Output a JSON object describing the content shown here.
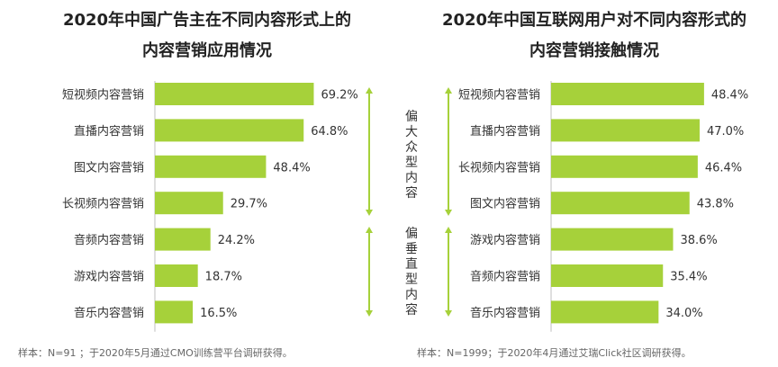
{
  "colors": {
    "bar": "#a6d13a",
    "arrow": "#a6d13a",
    "text": "#333333",
    "axis": "#bfbfbf"
  },
  "chart_data": [
    {
      "type": "bar",
      "orientation": "horizontal",
      "title_lines": [
        "2020年中国广告主在不同内容形式上的",
        "内容营销应用情况"
      ],
      "categories": [
        "短视频内容营销",
        "直播内容营销",
        "图文内容营销",
        "长视频内容营销",
        "音频内容营销",
        "游戏内容营销",
        "音乐内容营销"
      ],
      "values": [
        69.2,
        64.8,
        48.4,
        29.7,
        24.2,
        18.7,
        16.5
      ],
      "value_labels": [
        "69.2%",
        "64.8%",
        "48.4%",
        "29.7%",
        "24.2%",
        "18.7%",
        "16.5%"
      ],
      "unit": "%",
      "xlim": [
        0,
        100
      ],
      "annotations": [
        {
          "text": "偏大众型内容",
          "applies_to": [
            "短视频内容营销",
            "直播内容营销",
            "图文内容营销",
            "长视频内容营销"
          ]
        },
        {
          "text": "偏垂直型内容",
          "applies_to": [
            "音频内容营销",
            "游戏内容营销",
            "音乐内容营销"
          ]
        }
      ],
      "note": "样本：N=91 ；于2020年5月通过CMO训练营平台调研获得。"
    },
    {
      "type": "bar",
      "orientation": "horizontal",
      "title_lines": [
        "2020年中国互联网用户对不同内容形式的",
        "内容营销接触情况"
      ],
      "categories": [
        "短视频内容营销",
        "直播内容营销",
        "长视频内容营销",
        "图文内容营销",
        "游戏内容营销",
        "音频内容营销",
        "音乐内容营销"
      ],
      "values": [
        48.4,
        47.0,
        46.4,
        43.8,
        38.6,
        35.4,
        34.0
      ],
      "value_labels": [
        "48.4%",
        "47.0%",
        "46.4%",
        "43.8%",
        "38.6%",
        "35.4%",
        "34.0%"
      ],
      "unit": "%",
      "xlim": [
        0,
        55
      ],
      "note": "样本：N=1999；于2020年4月通过艾瑞Click社区调研获得。"
    }
  ]
}
